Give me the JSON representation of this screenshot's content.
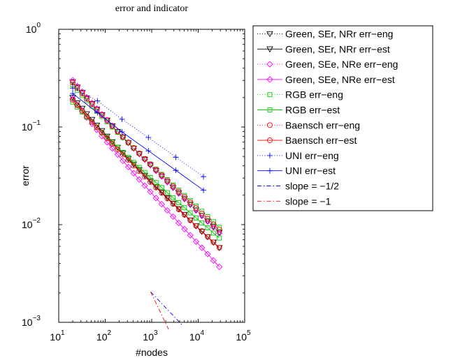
{
  "chart_data": {
    "type": "line",
    "title": "error and indicator",
    "xlabel": "#nodes",
    "ylabel": "error",
    "x_scale": "log",
    "y_scale": "log",
    "xlim": [
      10,
      100000
    ],
    "ylim": [
      0.001,
      1
    ],
    "x_ticks": [
      {
        "value": 10,
        "base": "10",
        "exp": "1"
      },
      {
        "value": 100,
        "base": "10",
        "exp": "2"
      },
      {
        "value": 1000,
        "base": "10",
        "exp": "3"
      },
      {
        "value": 10000,
        "base": "10",
        "exp": "4"
      },
      {
        "value": 100000,
        "base": "10",
        "exp": "5"
      }
    ],
    "y_ticks": [
      {
        "value": 0.001,
        "base": "10",
        "exp": "−3"
      },
      {
        "value": 0.01,
        "base": "10",
        "exp": "−2"
      },
      {
        "value": 0.1,
        "base": "10",
        "exp": "−1"
      },
      {
        "value": 1,
        "base": "10",
        "exp": "0"
      }
    ],
    "grid": false,
    "legend_position": "outside-right",
    "series": [
      {
        "name": "Green, SEr, NRr err−eng",
        "color": "#000000",
        "line": "dotted",
        "marker": "triangle-down",
        "x": [
          20,
          25,
          32,
          40,
          52,
          66,
          85,
          110,
          142,
          185,
          240,
          315,
          410,
          540,
          710,
          935,
          1240,
          1640,
          2170,
          2880,
          3820,
          5080,
          6760,
          9000,
          12000,
          16000,
          21300,
          28500
        ],
        "y": [
          0.29,
          0.255,
          0.225,
          0.198,
          0.173,
          0.152,
          0.133,
          0.117,
          0.102,
          0.0895,
          0.0785,
          0.0688,
          0.0603,
          0.0528,
          0.0463,
          0.0406,
          0.0356,
          0.0312,
          0.0273,
          0.0239,
          0.021,
          0.0184,
          0.0161,
          0.0141,
          0.0124,
          0.0108,
          0.0095,
          0.0083
        ]
      },
      {
        "name": "Green, SEr, NRr err−est",
        "color": "#000000",
        "line": "solid",
        "marker": "triangle-down",
        "x": [
          20,
          25,
          32,
          40,
          52,
          66,
          85,
          110,
          142,
          185,
          240,
          315,
          410,
          540,
          710,
          935,
          1240,
          1640,
          2170,
          2880,
          3820,
          5080,
          6760,
          9000,
          12000,
          16000,
          21300,
          28500
        ],
        "y": [
          0.2,
          0.176,
          0.155,
          0.136,
          0.119,
          0.104,
          0.0915,
          0.0802,
          0.0703,
          0.0616,
          0.054,
          0.0473,
          0.0415,
          0.0364,
          0.0319,
          0.028,
          0.0245,
          0.0215,
          0.0188,
          0.0165,
          0.0145,
          0.0127,
          0.0111,
          0.0097,
          0.0085,
          0.0075,
          0.0066,
          0.0058
        ]
      },
      {
        "name": "Green, SEe, NRe err−eng",
        "color": "#ff00ff",
        "line": "dotted",
        "marker": "diamond",
        "x": [
          20,
          25,
          32,
          40,
          52,
          66,
          85,
          110,
          142,
          185,
          240,
          315,
          410,
          540,
          710,
          935,
          1240,
          1640,
          2170,
          2880,
          3820,
          5080,
          6760,
          9000,
          12000,
          16000,
          21300,
          28500
        ],
        "y": [
          0.3,
          0.262,
          0.23,
          0.201,
          0.176,
          0.154,
          0.135,
          0.118,
          0.103,
          0.0902,
          0.079,
          0.0692,
          0.0606,
          0.053,
          0.0464,
          0.0407,
          0.0356,
          0.0312,
          0.0273,
          0.0239,
          0.0209,
          0.0183,
          0.016,
          0.014,
          0.0123,
          0.0108,
          0.0094,
          0.0082
        ]
      },
      {
        "name": "Green, SEe, NRe err−est",
        "color": "#ff00ff",
        "line": "solid",
        "marker": "diamond",
        "x": [
          20,
          25,
          32,
          40,
          52,
          66,
          85,
          110,
          142,
          185,
          240,
          315,
          410,
          540,
          710,
          935,
          1240,
          1640,
          2170,
          2880,
          3820,
          5080,
          6760,
          9000,
          12000,
          16000,
          21300,
          28500
        ],
        "y": [
          0.195,
          0.168,
          0.145,
          0.125,
          0.108,
          0.0935,
          0.0808,
          0.0698,
          0.0603,
          0.0521,
          0.045,
          0.0389,
          0.0336,
          0.029,
          0.0251,
          0.0217,
          0.0187,
          0.0162,
          0.014,
          0.0121,
          0.0104,
          0.009,
          0.0078,
          0.0067,
          0.0058,
          0.005,
          0.0043,
          0.0037
        ]
      },
      {
        "name": "RGB err−eng",
        "color": "#00cc00",
        "line": "dotted",
        "marker": "square",
        "x": [
          20,
          25,
          32,
          40,
          52,
          66,
          85,
          110,
          142,
          185,
          240,
          315,
          410,
          540,
          710,
          935,
          1240,
          1640,
          2170,
          2880,
          3820,
          5080,
          6760,
          9000,
          12000,
          16000,
          21300,
          28500
        ],
        "y": [
          0.27,
          0.238,
          0.21,
          0.186,
          0.164,
          0.145,
          0.128,
          0.113,
          0.1,
          0.0882,
          0.0779,
          0.0688,
          0.0608,
          0.0537,
          0.0474,
          0.0419,
          0.037,
          0.0327,
          0.0289,
          0.0255,
          0.0225,
          0.0199,
          0.0176,
          0.0155,
          0.0137,
          0.0121,
          0.0107,
          0.0094
        ]
      },
      {
        "name": "RGB err−est",
        "color": "#00cc00",
        "line": "solid",
        "marker": "square",
        "x": [
          20,
          25,
          32,
          40,
          52,
          66,
          85,
          110,
          142,
          185,
          240,
          315,
          410,
          540,
          710,
          935,
          1240,
          1640,
          2170,
          2880,
          3820,
          5080,
          6760,
          9000,
          12000,
          16000,
          21300,
          28500
        ],
        "y": [
          0.18,
          0.16,
          0.142,
          0.126,
          0.112,
          0.0995,
          0.0884,
          0.0785,
          0.0697,
          0.0619,
          0.055,
          0.0488,
          0.0434,
          0.0385,
          0.0342,
          0.0304,
          0.027,
          0.024,
          0.0213,
          0.0189,
          0.0168,
          0.0149,
          0.0132,
          0.0117,
          0.0104,
          0.0093,
          0.0082,
          0.0073
        ]
      },
      {
        "name": "Baensch err−eng",
        "color": "#ff0000",
        "line": "dotted",
        "marker": "circle",
        "x": [
          20,
          25,
          32,
          40,
          52,
          66,
          85,
          110,
          142,
          185,
          240,
          315,
          410,
          540,
          710,
          935,
          1240,
          1640,
          2170,
          2880,
          3820,
          5080,
          6760,
          9000,
          12000,
          16000,
          21300,
          28500
        ],
        "y": [
          0.285,
          0.25,
          0.22,
          0.194,
          0.171,
          0.15,
          0.132,
          0.116,
          0.102,
          0.0898,
          0.079,
          0.0695,
          0.0611,
          0.0537,
          0.0472,
          0.0415,
          0.0365,
          0.0321,
          0.0282,
          0.0248,
          0.0218,
          0.0192,
          0.0169,
          0.0148,
          0.013,
          0.0115,
          0.0101,
          0.0089
        ]
      },
      {
        "name": "Baensch err−est",
        "color": "#ff0000",
        "line": "solid",
        "marker": "circle",
        "x": [
          20,
          25,
          32,
          40,
          52,
          66,
          85,
          110,
          142,
          185,
          240,
          315,
          410,
          540,
          710,
          935,
          1240,
          1640,
          2170,
          2880,
          3820,
          5080,
          6760,
          9000,
          12000,
          16000,
          21300,
          28500
        ],
        "y": [
          0.19,
          0.167,
          0.147,
          0.129,
          0.113,
          0.0995,
          0.0874,
          0.0768,
          0.0675,
          0.0593,
          0.0521,
          0.0458,
          0.0402,
          0.0353,
          0.031,
          0.0273,
          0.024,
          0.0211,
          0.0185,
          0.0163,
          0.0143,
          0.0126,
          0.0111,
          0.0097,
          0.0086,
          0.0075,
          0.0066,
          0.0058
        ]
      },
      {
        "name": "UNI err−eng",
        "color": "#0000ff",
        "line": "dotted",
        "marker": "plus",
        "x": [
          20,
          68,
          230,
          850,
          3300,
          13000
        ],
        "y": [
          0.25,
          0.185,
          0.12,
          0.078,
          0.049,
          0.031
        ]
      },
      {
        "name": "UNI err−est",
        "color": "#0000ff",
        "line": "solid",
        "marker": "plus",
        "x": [
          20,
          68,
          230,
          850,
          3300,
          13000
        ],
        "y": [
          0.22,
          0.14,
          0.089,
          0.057,
          0.036,
          0.0225
        ]
      },
      {
        "name": "slope =  −1/2",
        "color": "#0000ff",
        "line": "dashdot",
        "marker": "none",
        "x": [
          950,
          4500
        ],
        "y": [
          0.00205,
          0.00094
        ]
      },
      {
        "name": "slope =  −1",
        "color": "#ff0000",
        "line": "dashdot",
        "marker": "none",
        "x": [
          950,
          2300
        ],
        "y": [
          0.00205,
          0.00085
        ]
      }
    ]
  }
}
